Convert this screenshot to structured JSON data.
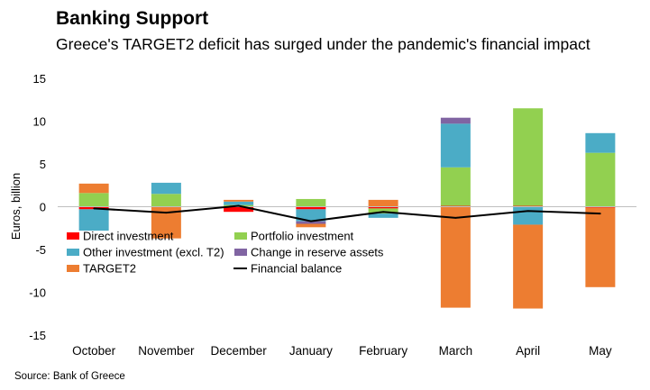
{
  "header": {
    "title": "Banking Support",
    "subtitle": "Greece's TARGET2 deficit has surged under the pandemic's financial impact"
  },
  "source": "Source: Bank of Greece",
  "chart_data": {
    "type": "bar",
    "stacked": true,
    "categories": [
      "October",
      "November",
      "December",
      "January",
      "February",
      "March",
      "April",
      "May"
    ],
    "ylabel": "Euros, billion",
    "ylim": [
      -15,
      15
    ],
    "yticks": [
      15,
      10,
      5,
      0,
      -5,
      -10,
      -15
    ],
    "legend_position": "bottom-left inside plot",
    "series": [
      {
        "name": "Direct investment",
        "type": "bar",
        "color": "#ff0000",
        "values": [
          -0.3,
          0.0,
          -0.6,
          -0.3,
          -0.2,
          0.1,
          0.1,
          -0.1
        ]
      },
      {
        "name": "Portfolio investment",
        "type": "bar",
        "color": "#92d050",
        "values": [
          1.6,
          1.5,
          0.2,
          0.9,
          -0.6,
          4.5,
          11.4,
          6.3
        ]
      },
      {
        "name": "Other investment (excl. T2)",
        "type": "bar",
        "color": "#4bacc6",
        "values": [
          -2.5,
          1.3,
          0.4,
          -1.4,
          -0.5,
          5.1,
          -2.1,
          2.3
        ]
      },
      {
        "name": "Change in reserve assets",
        "type": "bar",
        "color": "#8064a2",
        "values": [
          0.0,
          0.0,
          0.0,
          -0.3,
          0.0,
          0.7,
          0.0,
          0.0
        ]
      },
      {
        "name": "TARGET2",
        "type": "bar",
        "color": "#ed7d31",
        "values": [
          1.1,
          -3.7,
          0.2,
          -0.4,
          0.8,
          -11.8,
          -9.8,
          -9.3
        ]
      },
      {
        "name": "Financial balance",
        "type": "line",
        "color": "#000000",
        "values": [
          -0.2,
          -0.7,
          0.1,
          -1.7,
          -0.6,
          -1.3,
          -0.5,
          -0.8
        ]
      }
    ]
  }
}
